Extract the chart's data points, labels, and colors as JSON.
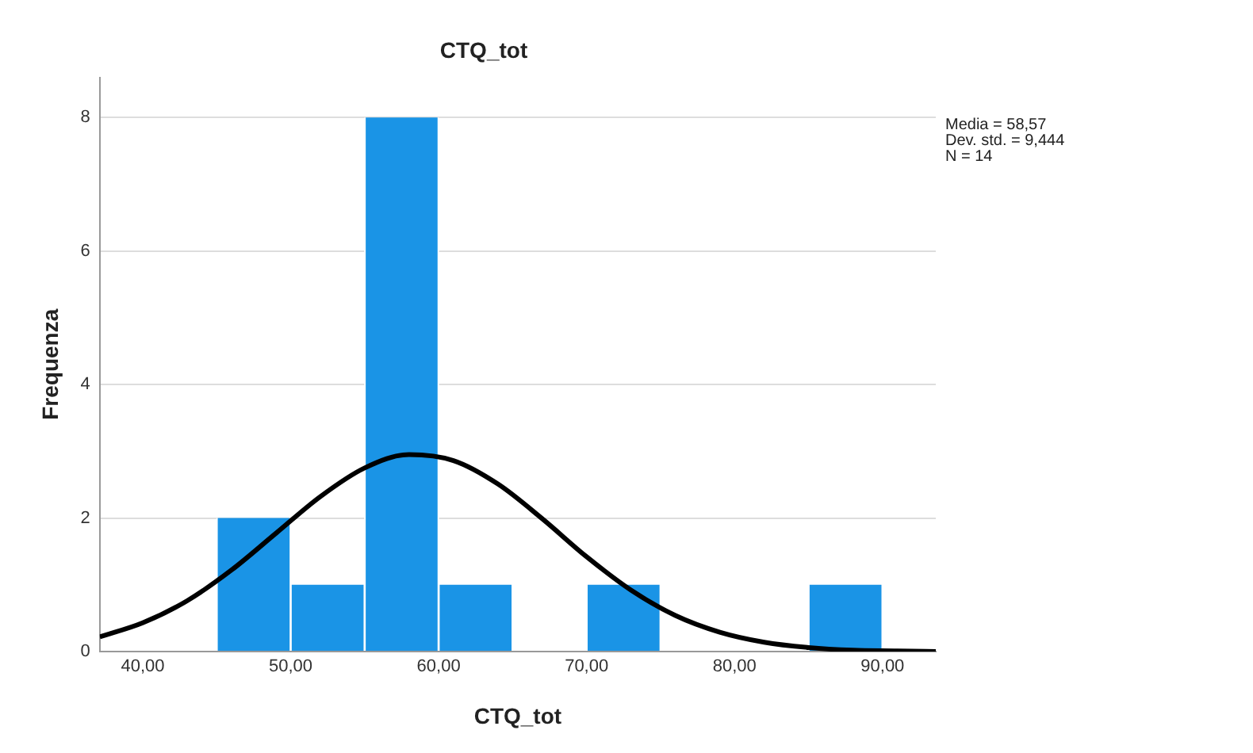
{
  "chart_data": {
    "type": "histogram",
    "title": "CTQ_tot",
    "xlabel": "CTQ_tot",
    "ylabel": "Frequenza",
    "bins": [
      45,
      50,
      55,
      60,
      65,
      70,
      75,
      80,
      85,
      90
    ],
    "values": [
      2,
      1,
      8,
      1,
      0,
      1,
      0,
      0,
      1
    ],
    "color": "#1a94e6",
    "series": [
      {
        "type": "line",
        "color": "#000000",
        "x": [
          37.1,
          40,
          43,
          46,
          49,
          52,
          55,
          58,
          61,
          64,
          67,
          70,
          73,
          76,
          79,
          82,
          85,
          88,
          91,
          93.6
        ],
        "values": [
          0.22,
          0.43,
          0.76,
          1.22,
          1.77,
          2.32,
          2.75,
          2.95,
          2.86,
          2.51,
          1.99,
          1.42,
          0.92,
          0.54,
          0.29,
          0.14,
          0.06,
          0.02,
          0.01,
          0
        ]
      }
    ],
    "xlim": [
      37.1,
      93.6
    ],
    "xticks": [
      {
        "value": 40,
        "label": "40,00"
      },
      {
        "value": 50,
        "label": "50,00"
      },
      {
        "value": 60,
        "label": "60,00"
      },
      {
        "value": 70,
        "label": "70,00"
      },
      {
        "value": 80,
        "label": "80,00"
      },
      {
        "value": 90,
        "label": "90,00"
      }
    ],
    "ylim": [
      0,
      8.6
    ],
    "yticks": [
      0,
      2,
      4,
      6,
      8
    ],
    "grid": "y",
    "legend": false,
    "marker": "none",
    "line_style": "solid",
    "annotations": [
      "Media = 58,57",
      "Dev. std. = 9,444",
      "N = 14"
    ]
  }
}
